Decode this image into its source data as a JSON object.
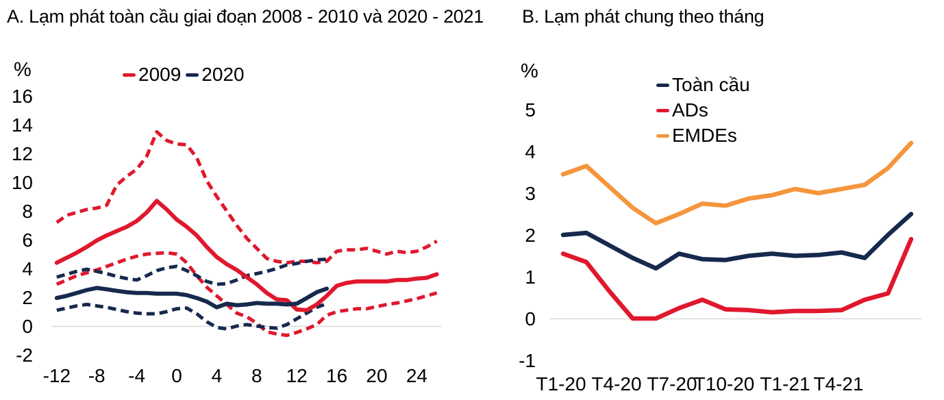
{
  "colors": {
    "red": "#E0182D",
    "navy": "#16294E",
    "orange": "#F5953D",
    "gridline": "#D9D9D9",
    "text": "#000000",
    "background": "#FFFFFF"
  },
  "chart_data": [
    {
      "type": "line",
      "panel": "A",
      "title": "A. Lạm phát toàn cầu giai đoạn 2008 - 2010 và 2020 - 2021",
      "ylabel": "%",
      "xlabel": "",
      "ylim": [
        -2,
        16
      ],
      "yticks": [
        16,
        14,
        12,
        10,
        8,
        6,
        4,
        2,
        0,
        -2
      ],
      "xticks": [
        -12,
        -8,
        -4,
        0,
        4,
        8,
        12,
        16,
        20,
        24
      ],
      "grid": "zero-line-only",
      "legend": [
        "2009",
        "2020"
      ],
      "legend_position": "top-center",
      "series": [
        {
          "name": "2009",
          "role": "median",
          "color_key": "red",
          "style": "solid",
          "start_month": -12,
          "values": [
            4.4,
            4.75,
            5.1,
            5.5,
            5.95,
            6.3,
            6.6,
            6.9,
            7.3,
            7.9,
            8.7,
            8.1,
            7.4,
            6.9,
            6.3,
            5.5,
            4.8,
            4.3,
            3.9,
            3.4,
            2.9,
            2.3,
            1.85,
            1.8,
            1.15,
            1.1,
            1.5,
            2.1,
            2.8,
            3.0,
            3.1,
            3.1,
            3.1,
            3.1,
            3.2,
            3.2,
            3.3,
            3.35,
            3.6
          ]
        },
        {
          "name": "2009 upper band",
          "role": "upper-band",
          "color_key": "red",
          "style": "dashed",
          "start_month": -12,
          "values": [
            7.2,
            7.7,
            7.9,
            8.1,
            8.2,
            8.4,
            9.8,
            10.4,
            10.9,
            11.8,
            13.5,
            12.9,
            12.65,
            12.6,
            11.7,
            10.1,
            9.0,
            8.0,
            7.0,
            6.1,
            5.4,
            4.7,
            4.5,
            4.4,
            4.5,
            4.5,
            4.4,
            4.5,
            5.2,
            5.3,
            5.3,
            5.4,
            5.2,
            5.0,
            5.2,
            5.1,
            5.2,
            5.5,
            5.9
          ]
        },
        {
          "name": "2009 lower band",
          "role": "lower-band",
          "color_key": "red",
          "style": "dashed",
          "start_month": -12,
          "values": [
            2.9,
            3.2,
            3.5,
            3.7,
            3.9,
            4.15,
            4.4,
            4.65,
            4.85,
            5.0,
            5.05,
            5.1,
            5.0,
            4.4,
            3.5,
            2.7,
            2.1,
            1.5,
            0.9,
            0.65,
            0.2,
            -0.4,
            -0.55,
            -0.65,
            -0.45,
            -0.2,
            0.1,
            0.75,
            1.0,
            1.1,
            1.2,
            1.2,
            1.35,
            1.5,
            1.6,
            1.75,
            1.9,
            2.1,
            2.3
          ]
        },
        {
          "name": "2020",
          "role": "median",
          "color_key": "navy",
          "style": "solid",
          "start_month": -12,
          "values": [
            1.95,
            2.1,
            2.3,
            2.5,
            2.65,
            2.55,
            2.45,
            2.35,
            2.3,
            2.3,
            2.25,
            2.25,
            2.25,
            2.15,
            1.95,
            1.7,
            1.3,
            1.55,
            1.45,
            1.5,
            1.6,
            1.55,
            1.55,
            1.5,
            1.55,
            1.95,
            2.35,
            2.6
          ]
        },
        {
          "name": "2020 upper band",
          "role": "upper-band",
          "color_key": "navy",
          "style": "dashed",
          "start_month": -12,
          "values": [
            3.4,
            3.6,
            3.8,
            3.95,
            3.8,
            3.65,
            3.45,
            3.3,
            3.2,
            3.5,
            3.85,
            4.05,
            4.15,
            3.85,
            3.5,
            3.1,
            2.9,
            2.95,
            3.2,
            3.5,
            3.65,
            3.8,
            4.0,
            4.25,
            4.35,
            4.5,
            4.6,
            4.65
          ]
        },
        {
          "name": "2020 lower band",
          "role": "lower-band",
          "color_key": "navy",
          "style": "dashed",
          "start_month": -12,
          "values": [
            1.1,
            1.25,
            1.4,
            1.5,
            1.4,
            1.3,
            1.15,
            1.0,
            0.9,
            0.85,
            0.85,
            1.0,
            1.2,
            1.25,
            0.85,
            0.3,
            -0.1,
            -0.2,
            0.0,
            0.1,
            0.0,
            -0.1,
            -0.15,
            0.1,
            0.5,
            0.9,
            1.3,
            1.55
          ]
        }
      ]
    },
    {
      "type": "line",
      "panel": "B",
      "title": "B. Lạm phát chung theo tháng",
      "ylabel": "%",
      "xlabel": "",
      "ylim": [
        -1,
        5
      ],
      "yticks": [
        5,
        4,
        3,
        2,
        1,
        0,
        -1
      ],
      "categories": [
        "T1-20",
        "T2-20",
        "T3-20",
        "T4-20",
        "T5-20",
        "T6-20",
        "T7-20",
        "T8-20",
        "T9-20",
        "T10-20",
        "T11-20",
        "T12-20",
        "T1-21",
        "T2-21",
        "T3-21",
        "T4-21"
      ],
      "xtick_labels": [
        "T1-20",
        "T4-20",
        "T7-20",
        "T10-20",
        "T1-21",
        "T4-21"
      ],
      "grid": "zero-line-only",
      "legend": [
        "Toàn cầu",
        "ADs",
        "EMDEs"
      ],
      "legend_position": "top-right",
      "series": [
        {
          "name": "Toàn cầu",
          "color_key": "navy",
          "style": "solid",
          "values": [
            2.0,
            2.05,
            1.75,
            1.45,
            1.2,
            1.55,
            1.42,
            1.4,
            1.5,
            1.55,
            1.5,
            1.52,
            1.58,
            1.45,
            2.0,
            2.5
          ]
        },
        {
          "name": "ADs",
          "color_key": "red",
          "style": "solid",
          "values": [
            1.55,
            1.35,
            0.65,
            0.0,
            0.0,
            0.25,
            0.45,
            0.22,
            0.2,
            0.15,
            0.18,
            0.18,
            0.2,
            0.45,
            0.6,
            1.9
          ]
        },
        {
          "name": "EMDEs",
          "color_key": "orange",
          "style": "solid",
          "values": [
            3.45,
            3.65,
            3.15,
            2.65,
            2.28,
            2.5,
            2.75,
            2.7,
            2.87,
            2.95,
            3.1,
            3.0,
            3.1,
            3.2,
            3.6,
            4.2
          ]
        }
      ]
    }
  ]
}
